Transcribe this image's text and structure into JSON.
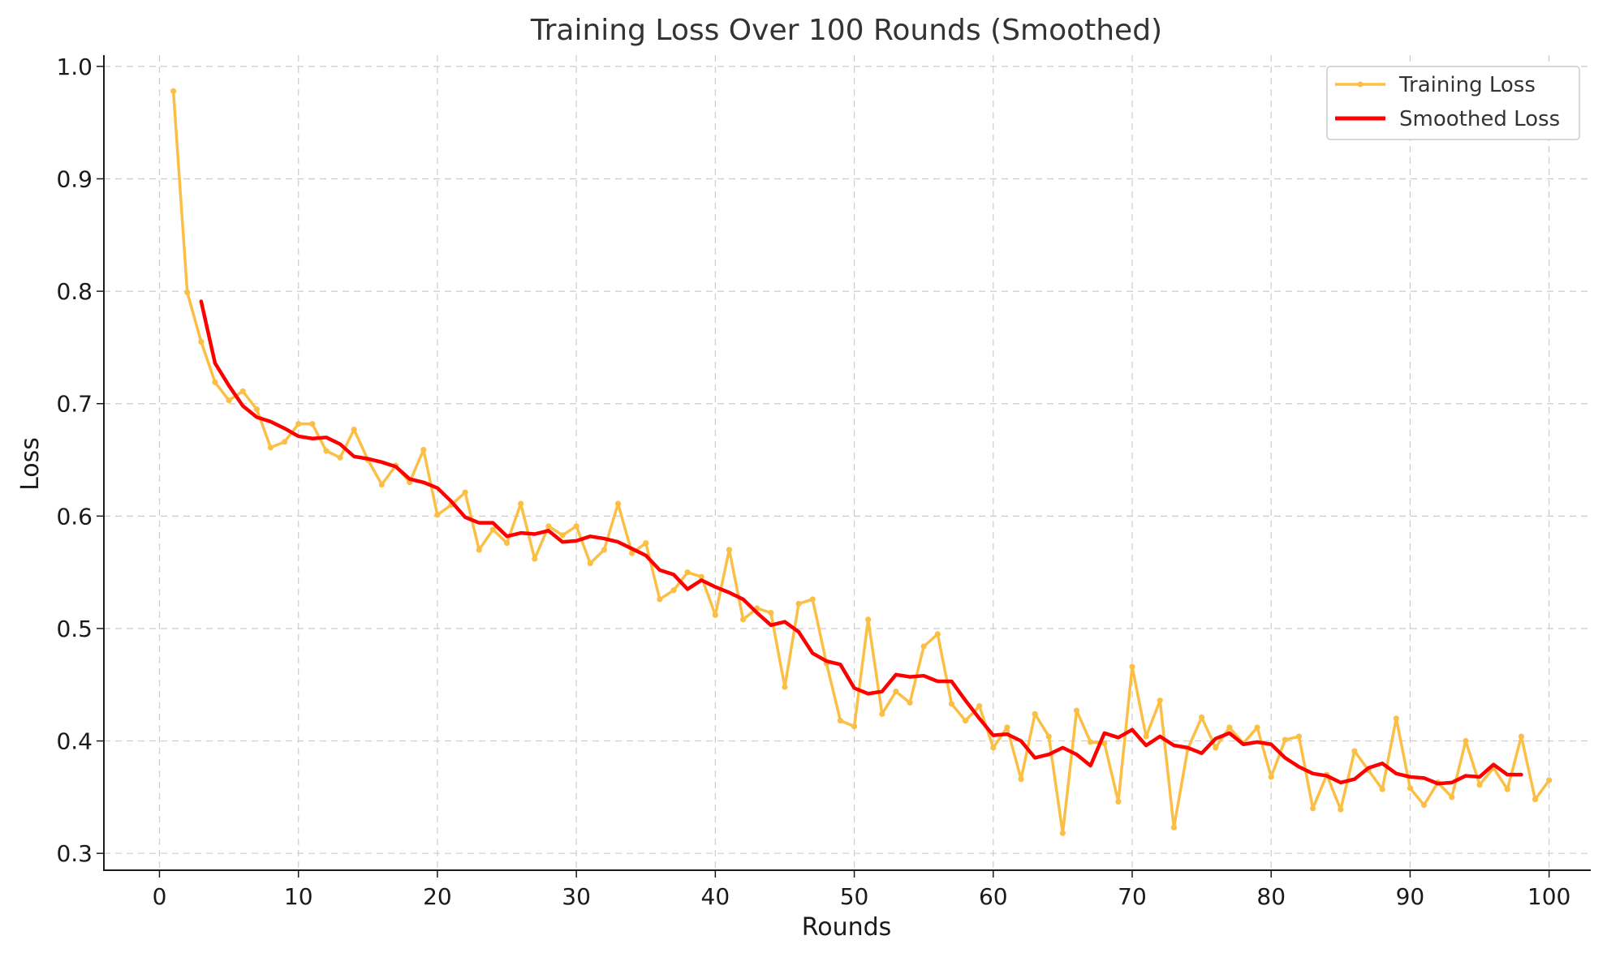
{
  "chart_data": {
    "type": "line",
    "title": "Training Loss Over 100 Rounds (Smoothed)",
    "xlabel": "Rounds",
    "ylabel": "Loss",
    "xlim": [
      -4,
      103
    ],
    "ylim": [
      0.285,
      1.01
    ],
    "x_ticks": [
      0,
      10,
      20,
      30,
      40,
      50,
      60,
      70,
      80,
      90,
      100
    ],
    "y_ticks": [
      0.3,
      0.4,
      0.5,
      0.6,
      0.7,
      0.8,
      0.9,
      1.0
    ],
    "x_tick_labels": [
      "0",
      "10",
      "20",
      "30",
      "40",
      "50",
      "60",
      "70",
      "80",
      "90",
      "100"
    ],
    "y_tick_labels": [
      "0.3",
      "0.4",
      "0.5",
      "0.6",
      "0.7",
      "0.8",
      "0.9",
      "1.0"
    ],
    "grid": true,
    "legend_position": "top-right",
    "series": [
      {
        "name": "Training Loss",
        "color": "#fbbf45",
        "marker": "dot",
        "x_start": 1,
        "values": [
          0.978,
          0.799,
          0.755,
          0.719,
          0.703,
          0.711,
          0.695,
          0.661,
          0.666,
          0.682,
          0.682,
          0.658,
          0.652,
          0.677,
          0.65,
          0.628,
          0.645,
          0.63,
          0.659,
          0.601,
          0.61,
          0.621,
          0.57,
          0.588,
          0.576,
          0.611,
          0.562,
          0.591,
          0.583,
          0.591,
          0.558,
          0.57,
          0.611,
          0.567,
          0.576,
          0.526,
          0.534,
          0.55,
          0.546,
          0.512,
          0.57,
          0.508,
          0.518,
          0.514,
          0.448,
          0.522,
          0.526,
          0.469,
          0.418,
          0.413,
          0.508,
          0.424,
          0.444,
          0.434,
          0.484,
          0.495,
          0.433,
          0.418,
          0.431,
          0.394,
          0.412,
          0.366,
          0.424,
          0.404,
          0.318,
          0.427,
          0.399,
          0.398,
          0.346,
          0.466,
          0.404,
          0.436,
          0.323,
          0.393,
          0.421,
          0.394,
          0.412,
          0.398,
          0.412,
          0.368,
          0.401,
          0.404,
          0.34,
          0.37,
          0.339,
          0.391,
          0.374,
          0.357,
          0.42,
          0.358,
          0.343,
          0.363,
          0.35,
          0.4,
          0.361,
          0.376,
          0.357,
          0.404,
          0.348,
          0.365
        ]
      },
      {
        "name": "Smoothed Loss",
        "color": "#ff0000",
        "marker": "none",
        "x_start": 3,
        "values": [
          0.791,
          0.736,
          0.716,
          0.698,
          0.688,
          0.684,
          0.678,
          0.671,
          0.669,
          0.67,
          0.664,
          0.653,
          0.651,
          0.648,
          0.644,
          0.633,
          0.63,
          0.625,
          0.613,
          0.599,
          0.594,
          0.594,
          0.582,
          0.585,
          0.584,
          0.587,
          0.577,
          0.578,
          0.582,
          0.58,
          0.577,
          0.571,
          0.565,
          0.552,
          0.548,
          0.535,
          0.543,
          0.537,
          0.532,
          0.526,
          0.514,
          0.503,
          0.506,
          0.497,
          0.478,
          0.471,
          0.468,
          0.447,
          0.442,
          0.444,
          0.459,
          0.457,
          0.458,
          0.453,
          0.453,
          0.436,
          0.42,
          0.405,
          0.406,
          0.4,
          0.385,
          0.388,
          0.394,
          0.388,
          0.378,
          0.407,
          0.403,
          0.41,
          0.396,
          0.404,
          0.396,
          0.394,
          0.389,
          0.402,
          0.407,
          0.397,
          0.399,
          0.397,
          0.385,
          0.377,
          0.371,
          0.369,
          0.363,
          0.366,
          0.376,
          0.38,
          0.371,
          0.368,
          0.367,
          0.362,
          0.363,
          0.369,
          0.368,
          0.379,
          0.37,
          0.37
        ]
      }
    ]
  }
}
